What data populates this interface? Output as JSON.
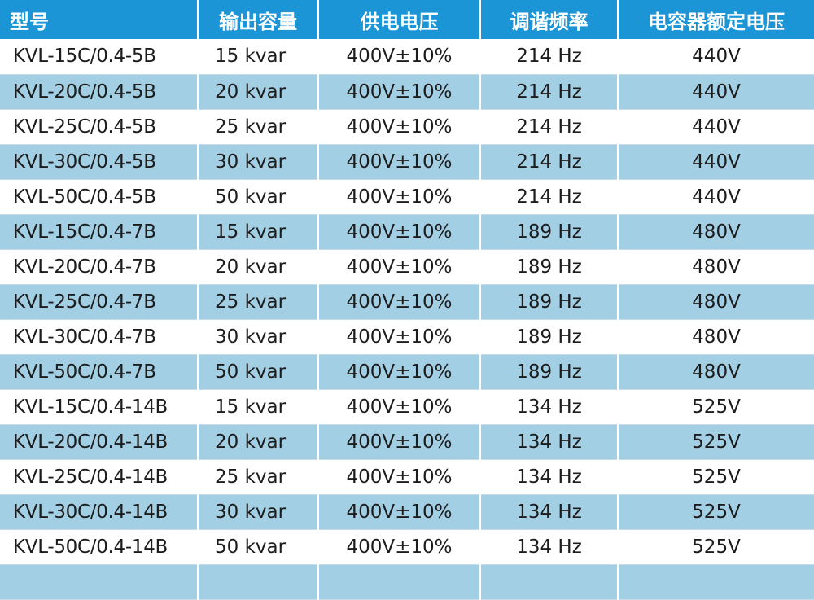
{
  "table": {
    "headers": [
      "型号",
      "输出容量",
      "供电电压",
      "调谐频率",
      "电容器额定电压"
    ],
    "rows": [
      [
        "KVL-15C/0.4-5B",
        "15 kvar",
        "400V±10%",
        "214 Hz",
        "440V"
      ],
      [
        "KVL-20C/0.4-5B",
        "20 kvar",
        "400V±10%",
        "214 Hz",
        "440V"
      ],
      [
        "KVL-25C/0.4-5B",
        "25 kvar",
        "400V±10%",
        "214 Hz",
        "440V"
      ],
      [
        "KVL-30C/0.4-5B",
        "30 kvar",
        "400V±10%",
        "214 Hz",
        "440V"
      ],
      [
        "KVL-50C/0.4-5B",
        "50 kvar",
        "400V±10%",
        "214 Hz",
        "440V"
      ],
      [
        "KVL-15C/0.4-7B",
        "15 kvar",
        "400V±10%",
        "189 Hz",
        "480V"
      ],
      [
        "KVL-20C/0.4-7B",
        "20 kvar",
        "400V±10%",
        "189 Hz",
        "480V"
      ],
      [
        "KVL-25C/0.4-7B",
        "25 kvar",
        "400V±10%",
        "189 Hz",
        "480V"
      ],
      [
        "KVL-30C/0.4-7B",
        "30 kvar",
        "400V±10%",
        "189 Hz",
        "480V"
      ],
      [
        "KVL-50C/0.4-7B",
        "50 kvar",
        "400V±10%",
        "189 Hz",
        "480V"
      ],
      [
        "KVL-15C/0.4-14B",
        "15 kvar",
        "400V±10%",
        "134 Hz",
        "525V"
      ],
      [
        "KVL-20C/0.4-14B",
        "20 kvar",
        "400V±10%",
        "134 Hz",
        "525V"
      ],
      [
        "KVL-25C/0.4-14B",
        "25 kvar",
        "400V±10%",
        "134 Hz",
        "525V"
      ],
      [
        "KVL-30C/0.4-14B",
        "30 kvar",
        "400V±10%",
        "134 Hz",
        "525V"
      ],
      [
        "KVL-50C/0.4-14B",
        "50 kvar",
        "400V±10%",
        "134 Hz",
        "525V"
      ]
    ]
  },
  "colors": {
    "header_bg": "#1c95d6",
    "header_text": "#ffffff",
    "stripe_bg": "#a3cfe4",
    "plain_bg": "#ffffff",
    "body_text": "#1c1c1c"
  }
}
